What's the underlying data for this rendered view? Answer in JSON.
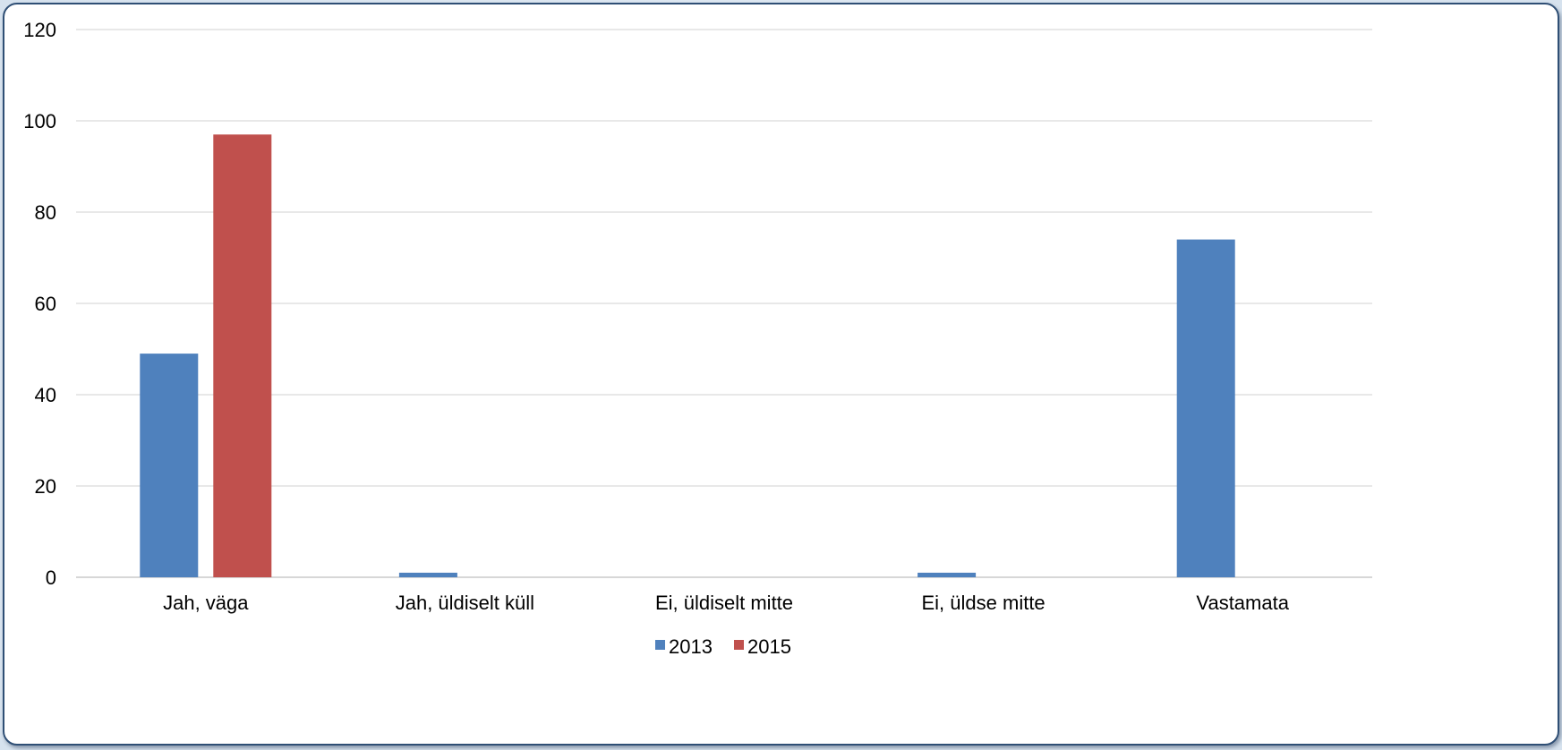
{
  "chart_data": {
    "type": "bar",
    "categories": [
      "Jah, väga",
      "Jah, üldiselt küll",
      "Ei, üldiselt mitte",
      "Ei, üldse mitte",
      "Vastamata"
    ],
    "series": [
      {
        "name": "2013",
        "values": [
          49,
          1,
          0,
          1,
          74
        ],
        "color": "#4f81bd"
      },
      {
        "name": "2015",
        "values": [
          97,
          0,
          0,
          0,
          0
        ],
        "color": "#c0504d"
      }
    ],
    "ylim": [
      0,
      120
    ],
    "yticks": [
      0,
      20,
      40,
      60,
      80,
      100,
      120
    ],
    "grid": true,
    "legend": "bottom-center",
    "title": "",
    "xlabel": "",
    "ylabel": ""
  }
}
